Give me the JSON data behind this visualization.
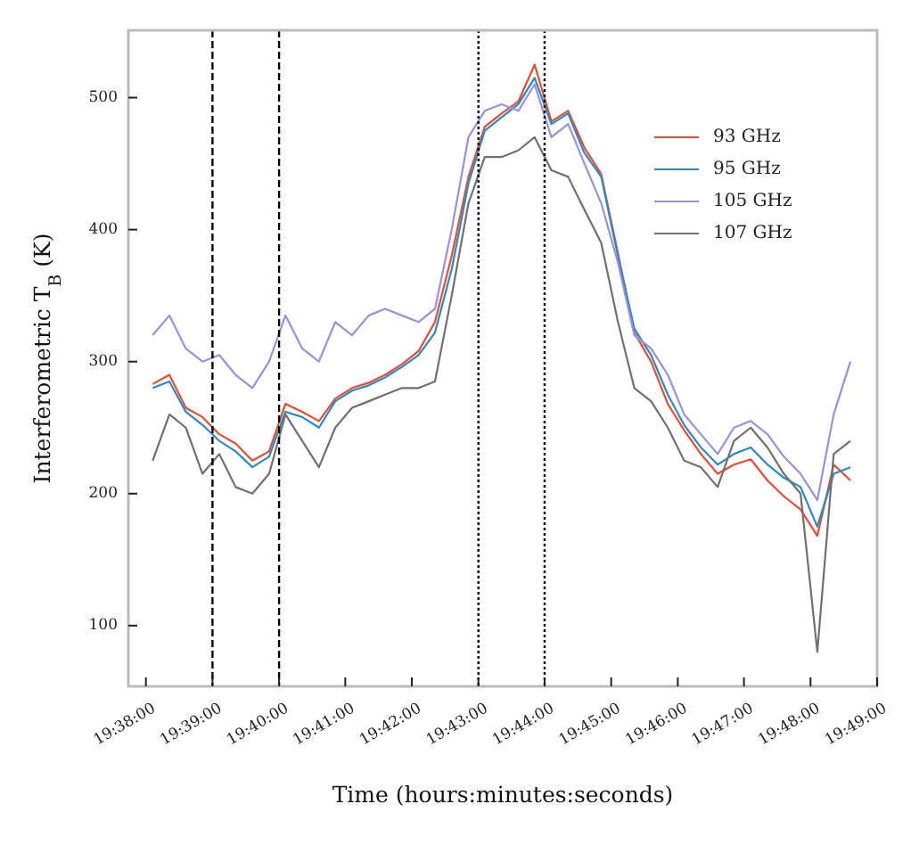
{
  "chart_data": {
    "type": "line",
    "xlabel": "Time (hours:minutes:seconds)",
    "ylabel": "Interferometric T$_{B}$ (K)",
    "x": [
      19.635,
      19.6392,
      19.6433,
      19.6475,
      19.6517,
      19.6558,
      19.66,
      19.6642,
      19.6683,
      19.6725,
      19.6767,
      19.6808,
      19.685,
      19.6892,
      19.6933,
      19.6975,
      19.7017,
      19.7058,
      19.71,
      19.7142,
      19.7183,
      19.7225,
      19.7267,
      19.7308,
      19.735,
      19.7392,
      19.7433,
      19.7475,
      19.7517,
      19.7558,
      19.76,
      19.7642,
      19.7683,
      19.7725,
      19.7767,
      19.7808,
      19.785,
      19.7892,
      19.7933,
      19.7975,
      19.8017,
      19.8058,
      19.81
    ],
    "series": [
      {
        "name": "93 GHz",
        "color": "#ee4a32",
        "values": [
          283,
          290,
          265,
          258,
          245,
          238,
          225,
          232,
          268,
          262,
          255,
          272,
          280,
          284,
          290,
          298,
          308,
          330,
          380,
          440,
          478,
          488,
          497,
          525,
          482,
          490,
          462,
          442,
          382,
          322,
          300,
          268,
          248,
          230,
          215,
          222,
          226,
          210,
          198,
          188,
          168,
          222,
          210
        ]
      },
      {
        "name": "95 GHz",
        "color": "#2a8ac4",
        "values": [
          280,
          285,
          262,
          252,
          240,
          232,
          220,
          228,
          262,
          258,
          250,
          270,
          278,
          282,
          288,
          296,
          305,
          322,
          370,
          435,
          475,
          485,
          495,
          515,
          480,
          488,
          458,
          440,
          380,
          325,
          305,
          275,
          252,
          235,
          222,
          230,
          235,
          222,
          212,
          205,
          175,
          215,
          220
        ]
      },
      {
        "name": "105 GHz",
        "color": "#9c8fdc",
        "values": [
          320,
          335,
          310,
          300,
          305,
          290,
          280,
          300,
          335,
          310,
          300,
          330,
          320,
          335,
          340,
          335,
          330,
          340,
          400,
          470,
          490,
          495,
          490,
          510,
          470,
          480,
          450,
          420,
          375,
          320,
          310,
          290,
          260,
          245,
          230,
          250,
          255,
          245,
          228,
          215,
          195,
          260,
          300
        ]
      },
      {
        "name": "107 GHz",
        "color": "#707070",
        "values": [
          225,
          260,
          250,
          215,
          230,
          205,
          200,
          215,
          260,
          240,
          220,
          250,
          265,
          270,
          275,
          280,
          280,
          285,
          350,
          420,
          455,
          455,
          460,
          470,
          445,
          440,
          415,
          390,
          330,
          280,
          270,
          250,
          225,
          220,
          205,
          240,
          250,
          235,
          215,
          200,
          80,
          230,
          240
        ]
      }
    ],
    "xlim": [
      19.6289,
      19.8167
    ],
    "xticks": [
      {
        "value": 19.6333,
        "label": "19:38:00"
      },
      {
        "value": 19.65,
        "label": "19:39:00"
      },
      {
        "value": 19.6667,
        "label": "19:40:00"
      },
      {
        "value": 19.6833,
        "label": "19:41:00"
      },
      {
        "value": 19.7,
        "label": "19:42:00"
      },
      {
        "value": 19.7167,
        "label": "19:43:00"
      },
      {
        "value": 19.7333,
        "label": "19:44:00"
      },
      {
        "value": 19.75,
        "label": "19:45:00"
      },
      {
        "value": 19.7667,
        "label": "19:46:00"
      },
      {
        "value": 19.7833,
        "label": "19:47:00"
      },
      {
        "value": 19.8,
        "label": "19:48:00"
      },
      {
        "value": 19.8167,
        "label": "19:49:00"
      }
    ],
    "ylim": [
      54,
      551
    ],
    "yticks": [
      100,
      200,
      300,
      400,
      500
    ],
    "ref_lines": [
      {
        "axis": "x",
        "value": 19.65,
        "color": "#000000",
        "line_style": "dashed"
      },
      {
        "axis": "x",
        "value": 19.6667,
        "color": "#000000",
        "line_style": "dashed"
      },
      {
        "axis": "x",
        "value": 19.7167,
        "color": "#000000",
        "line_style": "dotted"
      },
      {
        "axis": "x",
        "value": 19.7333,
        "color": "#000000",
        "line_style": "dotted"
      }
    ],
    "grid": false,
    "legend": "top right",
    "marker": "none",
    "line_style": "solid"
  }
}
